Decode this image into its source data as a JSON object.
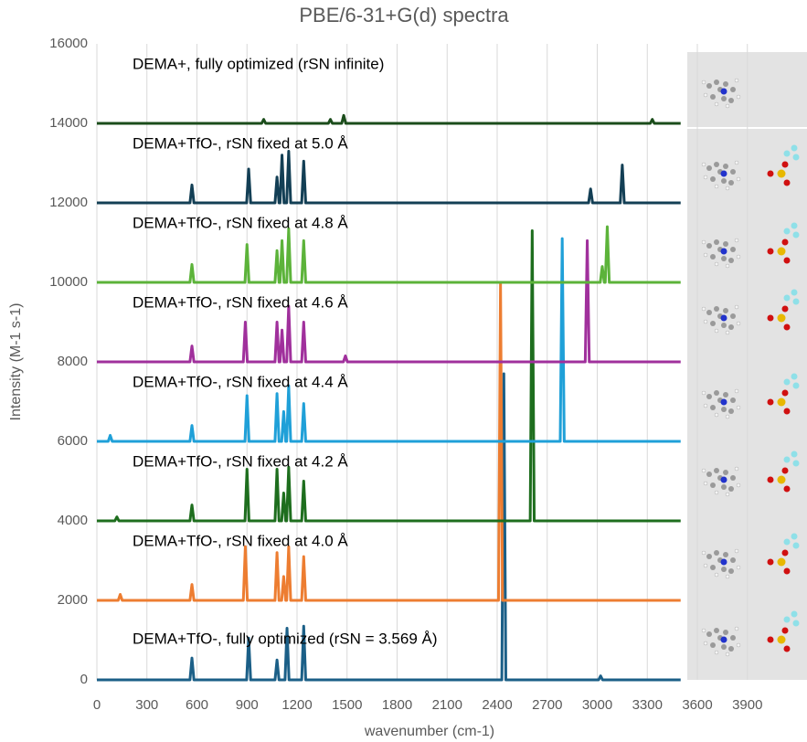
{
  "chart_data": {
    "type": "line",
    "title": "PBE/6-31+G(d) spectra",
    "x_label": "wavenumber (cm-1)",
    "y_label": "Intensity (M-1 s-1)",
    "xlim": [
      0,
      4000
    ],
    "ylim": [
      0,
      16000
    ],
    "xticks": [
      0,
      300,
      600,
      900,
      1200,
      1500,
      1800,
      2100,
      2400,
      2700,
      3000,
      3300,
      3600,
      3900
    ],
    "yticks": [
      0,
      2000,
      4000,
      6000,
      8000,
      10000,
      12000,
      14000,
      16000
    ],
    "grid": "x",
    "series": [
      {
        "name": "DEMA+TfO-, fully optimized (rSN = 3.569 Å)",
        "color": "#1b5f87",
        "x": [
          0,
          558,
          570,
          582,
          898,
          910,
          922,
          1068,
          1080,
          1092,
          1128,
          1140,
          1152,
          1228,
          1240,
          1252,
          2428,
          2440,
          2452,
          3008,
          3020,
          3032,
          3500
        ],
        "values": [
          0,
          0,
          550,
          0,
          0,
          1050,
          0,
          0,
          500,
          0,
          0,
          1300,
          0,
          0,
          1350,
          0,
          0,
          7700,
          0,
          0,
          100,
          0,
          0
        ]
      },
      {
        "name": "DEMA+TfO-, rSN fixed at 4.0 Å",
        "color": "#ed7d31",
        "x": [
          0,
          128,
          140,
          152,
          558,
          570,
          582,
          878,
          890,
          902,
          1068,
          1080,
          1092,
          1108,
          1120,
          1132,
          1138,
          1150,
          1162,
          1228,
          1240,
          1252,
          2408,
          2420,
          2432,
          3500
        ],
        "values": [
          2000,
          2000,
          2150,
          2000,
          2000,
          2400,
          2000,
          2000,
          3350,
          2000,
          2000,
          3200,
          2000,
          2000,
          2600,
          2000,
          2000,
          3350,
          2000,
          2000,
          3100,
          2000,
          2000,
          10000,
          2000,
          2000
        ]
      },
      {
        "name": "DEMA+TfO-, rSN fixed at 4.2 Å",
        "color": "#1e6e1e",
        "x": [
          0,
          108,
          120,
          132,
          558,
          570,
          582,
          888,
          900,
          912,
          1068,
          1080,
          1092,
          1108,
          1120,
          1132,
          1138,
          1150,
          1162,
          1228,
          1240,
          1252,
          2598,
          2610,
          2622,
          3500
        ],
        "values": [
          4000,
          4000,
          4100,
          4000,
          4000,
          4400,
          4000,
          4000,
          5300,
          4000,
          4000,
          5300,
          4000,
          4000,
          4700,
          4000,
          4000,
          5350,
          4000,
          4000,
          5000,
          4000,
          4000,
          11300,
          4000,
          4000
        ]
      },
      {
        "name": "DEMA+TfO-, rSN fixed at 4.4 Å",
        "color": "#1fa0d8",
        "x": [
          0,
          68,
          80,
          92,
          558,
          570,
          582,
          888,
          900,
          912,
          1068,
          1080,
          1092,
          1108,
          1120,
          1132,
          1138,
          1150,
          1162,
          1228,
          1240,
          1252,
          2778,
          2790,
          2802,
          3500
        ],
        "values": [
          6000,
          6000,
          6150,
          6000,
          6000,
          6400,
          6000,
          6000,
          7150,
          6000,
          6000,
          7200,
          6000,
          6000,
          6750,
          6000,
          6000,
          7400,
          6000,
          6000,
          6950,
          6000,
          6000,
          11100,
          6000,
          6000
        ]
      },
      {
        "name": "DEMA+TfO-, rSN fixed at 4.6 Å",
        "color": "#a0309c",
        "x": [
          0,
          558,
          570,
          582,
          878,
          890,
          902,
          1068,
          1080,
          1092,
          1098,
          1110,
          1122,
          1138,
          1150,
          1162,
          1228,
          1240,
          1252,
          1478,
          1490,
          1502,
          2928,
          2940,
          2952,
          3500
        ],
        "values": [
          8000,
          8000,
          8400,
          8000,
          8000,
          9000,
          8000,
          8000,
          9000,
          8000,
          8000,
          8800,
          8000,
          8000,
          9400,
          8000,
          8000,
          9000,
          8000,
          8000,
          8150,
          8000,
          8000,
          11050,
          8000,
          8000
        ]
      },
      {
        "name": "DEMA+TfO-, rSN fixed at 4.8 Å",
        "color": "#5cb33a",
        "x": [
          0,
          558,
          570,
          582,
          888,
          900,
          912,
          1068,
          1080,
          1092,
          1098,
          1110,
          1122,
          1138,
          1150,
          1162,
          1228,
          1240,
          1252,
          3018,
          3030,
          3042,
          3048,
          3060,
          3072,
          3500
        ],
        "values": [
          10000,
          10000,
          10450,
          10000,
          10000,
          10950,
          10000,
          10000,
          10800,
          10000,
          10000,
          11050,
          10000,
          10000,
          11350,
          10000,
          10000,
          11050,
          10000,
          10000,
          10400,
          10000,
          10000,
          11400,
          10000,
          10000
        ]
      },
      {
        "name": "DEMA+TfO-, rSN fixed at 5.0 Å",
        "color": "#133f55",
        "x": [
          0,
          558,
          570,
          582,
          898,
          910,
          922,
          1068,
          1080,
          1092,
          1098,
          1110,
          1122,
          1138,
          1150,
          1162,
          1228,
          1240,
          1252,
          2948,
          2960,
          2972,
          3138,
          3150,
          3162,
          3500
        ],
        "values": [
          12000,
          12000,
          12450,
          12000,
          12000,
          12850,
          12000,
          12000,
          12650,
          12000,
          12000,
          13200,
          12000,
          12000,
          13300,
          12000,
          12000,
          13050,
          12000,
          12000,
          12350,
          12000,
          12000,
          12950,
          12000,
          12000
        ]
      },
      {
        "name": "DEMA+, fully optimized (rSN infinite)",
        "color": "#1b4d1b",
        "x": [
          0,
          988,
          1000,
          1012,
          1388,
          1400,
          1412,
          1468,
          1480,
          1492,
          3318,
          3330,
          3342,
          3500
        ],
        "values": [
          14000,
          14000,
          14100,
          14000,
          14000,
          14100,
          14000,
          14000,
          14200,
          14000,
          14000,
          14100,
          14000,
          14000
        ]
      }
    ]
  }
}
